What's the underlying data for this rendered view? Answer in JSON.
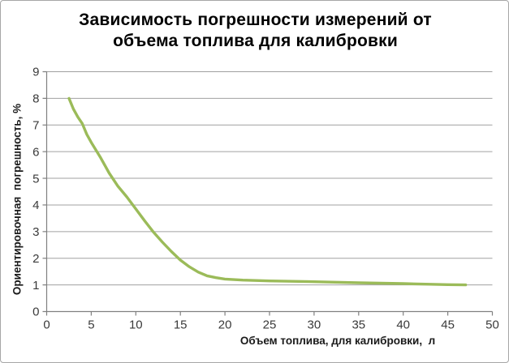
{
  "chart_data": {
    "type": "line",
    "title": "Зависимость погрешности измерений от объема топлива для калибровки",
    "title_lines": [
      "Зависимость погрешности измерений от",
      "объема топлива для калибровки"
    ],
    "xlabel": "Объем топлива, для калибровки,  л",
    "ylabel": "Ориентировочная  погрешность, %",
    "xlim": [
      0,
      50
    ],
    "ylim": [
      0,
      9
    ],
    "x_ticks": [
      0,
      5,
      10,
      15,
      20,
      25,
      30,
      35,
      40,
      45,
      50
    ],
    "y_ticks": [
      0,
      1,
      2,
      3,
      4,
      5,
      6,
      7,
      8,
      9
    ],
    "grid": "horizontal",
    "legend": "none",
    "series": [
      {
        "color": "#9bbb59",
        "points": [
          [
            2.5,
            8.0
          ],
          [
            3,
            7.6
          ],
          [
            3.5,
            7.3
          ],
          [
            4,
            7.05
          ],
          [
            4.5,
            6.65
          ],
          [
            5,
            6.35
          ],
          [
            6,
            5.8
          ],
          [
            7,
            5.2
          ],
          [
            8,
            4.7
          ],
          [
            9,
            4.3
          ],
          [
            10,
            3.85
          ],
          [
            11,
            3.4
          ],
          [
            12,
            2.97
          ],
          [
            13,
            2.6
          ],
          [
            14,
            2.25
          ],
          [
            15,
            1.93
          ],
          [
            16,
            1.68
          ],
          [
            17,
            1.48
          ],
          [
            18,
            1.34
          ],
          [
            19,
            1.27
          ],
          [
            20,
            1.22
          ],
          [
            22,
            1.18
          ],
          [
            25,
            1.15
          ],
          [
            30,
            1.12
          ],
          [
            35,
            1.08
          ],
          [
            40,
            1.05
          ],
          [
            45,
            1.01
          ],
          [
            47,
            1.0
          ]
        ]
      }
    ]
  },
  "colors": {
    "curve": "#9bbb59",
    "gridline": "#a0a0a0",
    "axis": "#808080",
    "tick_text": "#3a3a3a",
    "title_text": "#000000",
    "frame_border": "#a6a6a6"
  }
}
